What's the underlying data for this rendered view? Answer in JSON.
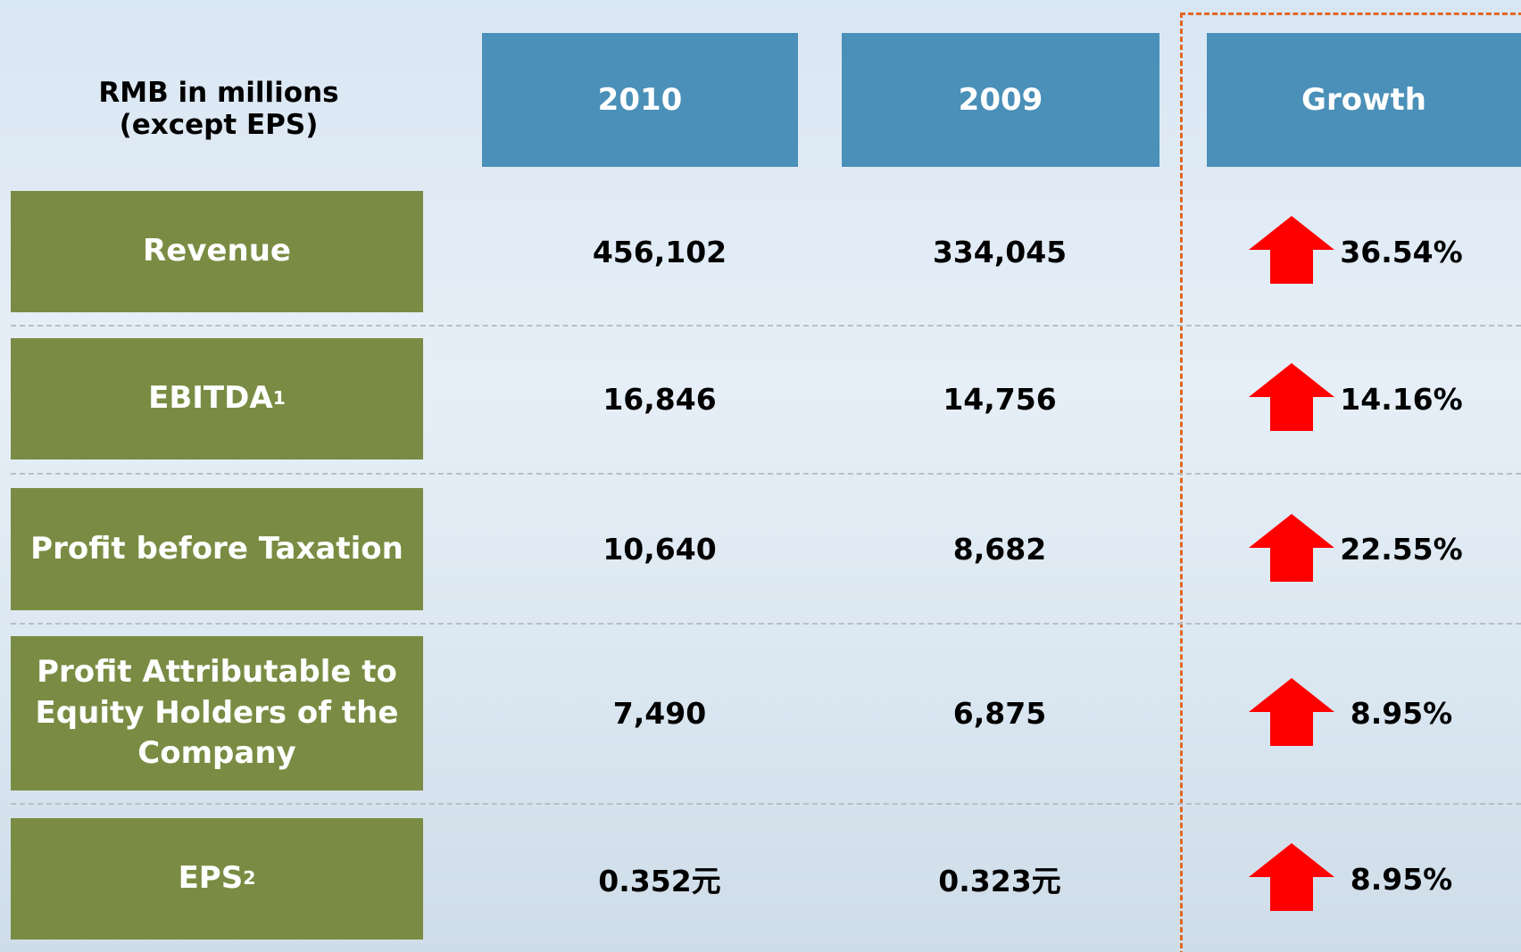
{
  "header": {
    "corner": [
      "RMB in millions",
      "(except EPS)"
    ],
    "columns": [
      "2010",
      "2009",
      "Growth"
    ]
  },
  "rows": [
    {
      "label": "Revenue",
      "v2010": "456,102",
      "v2009": "334,045",
      "growth": "36.54%"
    },
    {
      "label": "EBITDA",
      "note": "1",
      "v2010": "16,846",
      "v2009": "14,756",
      "growth": "14.16%"
    },
    {
      "label": "Profit before Taxation",
      "v2010": "10,640",
      "v2009": "8,682",
      "growth": "22.55%"
    },
    {
      "label": "Profit Attributable to Equity Holders of the Company",
      "v2010": "7,490",
      "v2009": "6,875",
      "growth": "8.95%"
    },
    {
      "label": "EPS",
      "note": "2",
      "v2010": "0.352元",
      "v2009": "0.323元",
      "growth": "8.95%"
    }
  ]
}
